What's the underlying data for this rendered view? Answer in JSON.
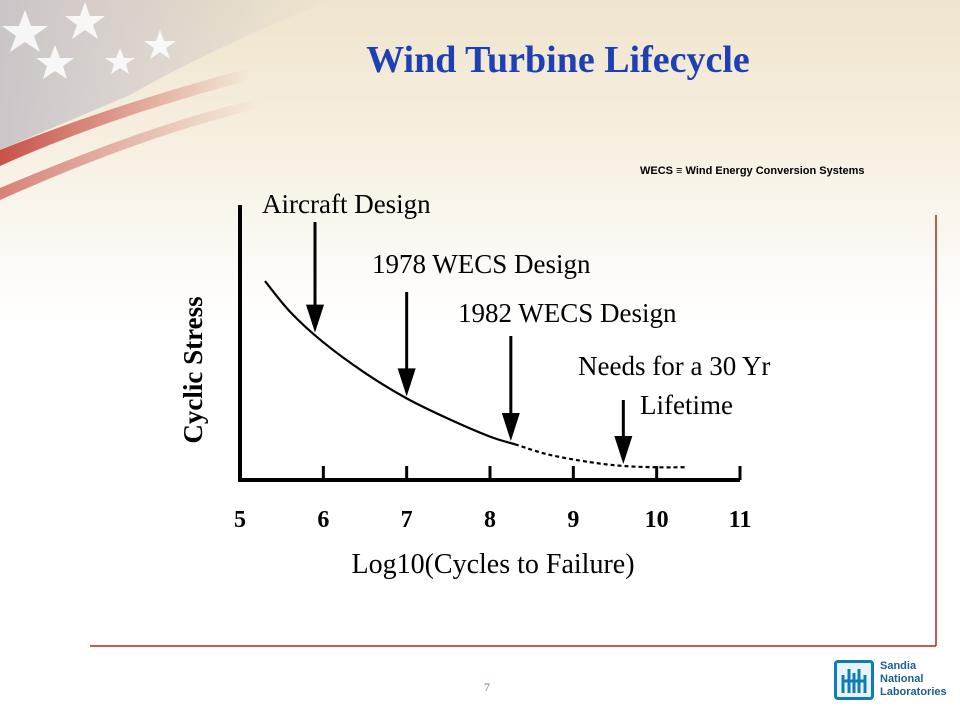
{
  "slide": {
    "title": "Wind Turbine Lifecycle",
    "footnote": "WECS ≡ Wind Energy Conversion Systems",
    "page_number": "7",
    "logo": {
      "line1": "Sandia",
      "line2": "National",
      "line3": "Laboratories",
      "icon": "sandia-thunderbird-icon",
      "color": "#1d5e8e"
    },
    "title_color": "#1f3fb4",
    "accent_color": "#b0281e"
  },
  "chart_data": {
    "type": "line",
    "title": "",
    "xlabel": "Log10(Cycles to Failure)",
    "ylabel": "Cyclic Stress",
    "xlim": [
      5,
      11
    ],
    "ylim": [
      0,
      100
    ],
    "x_ticks": [
      "5",
      "6",
      "7",
      "8",
      "9",
      "10",
      "11"
    ],
    "y_ticks": [],
    "series": [
      {
        "style": "solid",
        "x": [
          5.3,
          5.6,
          6.0,
          6.5,
          7.0,
          7.5,
          8.0,
          8.3
        ],
        "y": [
          78,
          66,
          54,
          42,
          32,
          24,
          17,
          14
        ]
      },
      {
        "style": "dashed",
        "x": [
          8.3,
          8.7,
          9.2,
          9.6,
          10.0,
          10.35
        ],
        "y": [
          14,
          10,
          7,
          5.5,
          5,
          5
        ]
      }
    ],
    "annotations": [
      {
        "label": "Aircraft Design",
        "x": 5.9
      },
      {
        "label": "1978 WECS Design",
        "x": 7.0
      },
      {
        "label": "1982 WECS Design",
        "x": 8.25
      },
      {
        "label": "Needs for a 30 Yr",
        "label2": "Lifetime",
        "x": 9.6
      }
    ]
  }
}
